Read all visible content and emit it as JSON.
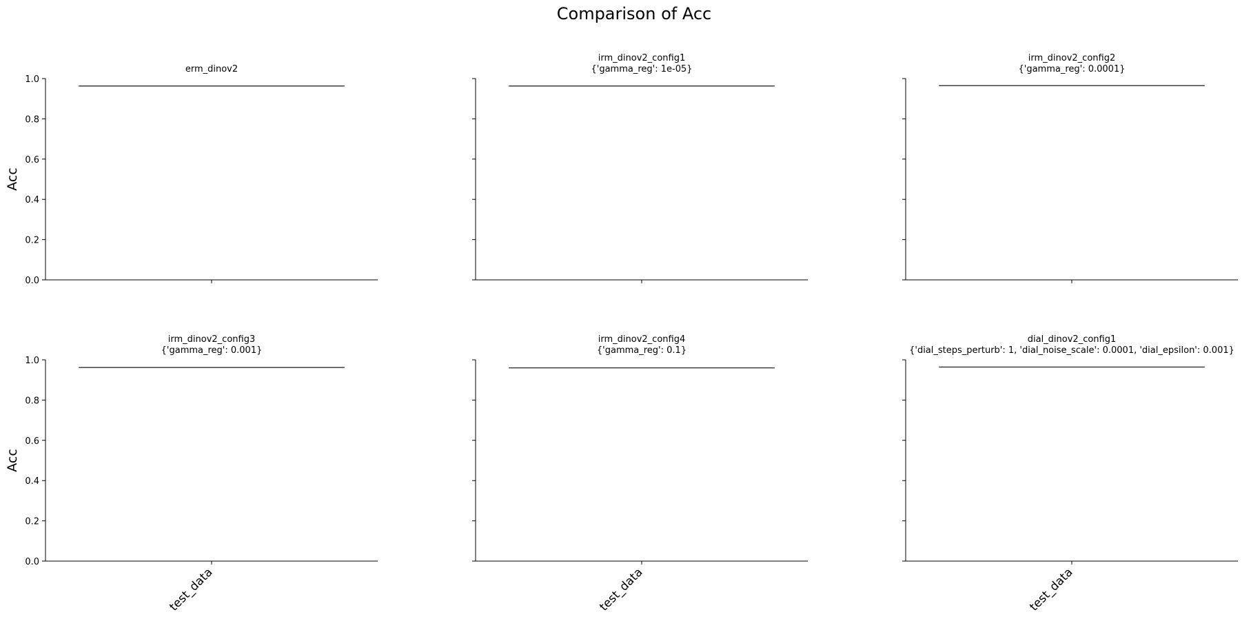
{
  "figure": {
    "title": "Comparison of Acc"
  },
  "chart_data": [
    {
      "type": "box",
      "title_lines": [
        "erm_dinov2"
      ],
      "ylabel": "Acc",
      "ylim": [
        0,
        1
      ],
      "yticks": [
        "0.0",
        "0.2",
        "0.4",
        "0.6",
        "0.8",
        "1.0"
      ],
      "categories": [
        "test_data"
      ],
      "values": [
        0.963
      ],
      "show_ylabel": true,
      "show_yticklabels": true,
      "show_xticklabels": false
    },
    {
      "type": "box",
      "title_lines": [
        "irm_dinov2_config1",
        "{'gamma_reg': 1e-05}"
      ],
      "ylabel": "",
      "ylim": [
        0,
        1
      ],
      "yticks": [
        "0.0",
        "0.2",
        "0.4",
        "0.6",
        "0.8",
        "1.0"
      ],
      "categories": [
        "test_data"
      ],
      "values": [
        0.963
      ],
      "show_ylabel": false,
      "show_yticklabels": false,
      "show_xticklabels": false
    },
    {
      "type": "box",
      "title_lines": [
        "irm_dinov2_config2",
        "{'gamma_reg': 0.0001}"
      ],
      "ylabel": "",
      "ylim": [
        0,
        1
      ],
      "yticks": [
        "0.0",
        "0.2",
        "0.4",
        "0.6",
        "0.8",
        "1.0"
      ],
      "categories": [
        "test_data"
      ],
      "values": [
        0.965
      ],
      "show_ylabel": false,
      "show_yticklabels": false,
      "show_xticklabels": false
    },
    {
      "type": "box",
      "title_lines": [
        "irm_dinov2_config3",
        "{'gamma_reg': 0.001}"
      ],
      "ylabel": "Acc",
      "ylim": [
        0,
        1
      ],
      "yticks": [
        "0.0",
        "0.2",
        "0.4",
        "0.6",
        "0.8",
        "1.0"
      ],
      "categories": [
        "test_data"
      ],
      "values": [
        0.962
      ],
      "show_ylabel": true,
      "show_yticklabels": true,
      "show_xticklabels": true
    },
    {
      "type": "box",
      "title_lines": [
        "irm_dinov2_config4",
        "{'gamma_reg': 0.1}"
      ],
      "ylabel": "",
      "ylim": [
        0,
        1
      ],
      "yticks": [
        "0.0",
        "0.2",
        "0.4",
        "0.6",
        "0.8",
        "1.0"
      ],
      "categories": [
        "test_data"
      ],
      "values": [
        0.96
      ],
      "show_ylabel": false,
      "show_yticklabels": false,
      "show_xticklabels": true
    },
    {
      "type": "box",
      "title_lines": [
        "dial_dinov2_config1",
        "{'dial_steps_perturb': 1, 'dial_noise_scale': 0.0001, 'dial_epsilon': 0.001}"
      ],
      "ylabel": "",
      "ylim": [
        0,
        1
      ],
      "yticks": [
        "0.0",
        "0.2",
        "0.4",
        "0.6",
        "0.8",
        "1.0"
      ],
      "categories": [
        "test_data"
      ],
      "values": [
        0.964
      ],
      "show_ylabel": false,
      "show_yticklabels": false,
      "show_xticklabels": true
    }
  ],
  "colors": {
    "axis": "#000000",
    "median_line": "#3d3d3d"
  }
}
